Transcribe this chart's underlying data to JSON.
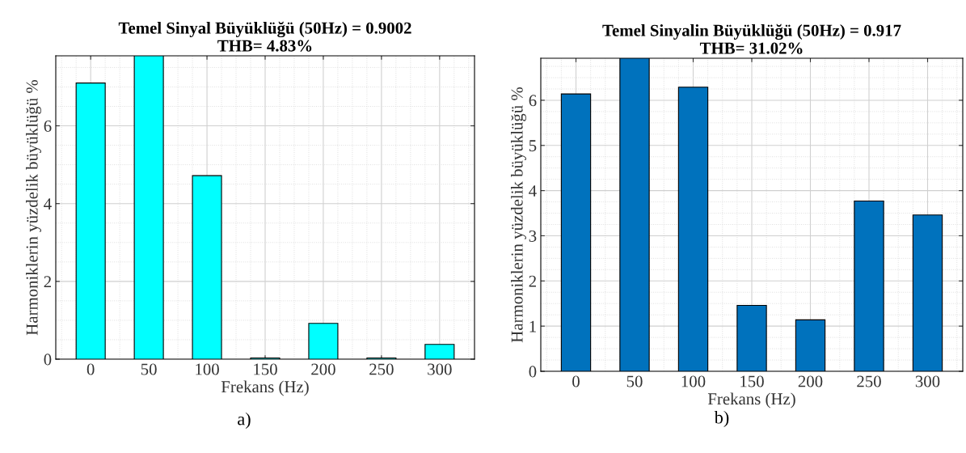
{
  "chart_data": [
    {
      "type": "bar",
      "title": "Temel Sinyal Büyüklüğü (50Hz) = 0.9002\nTHB= 4.83%",
      "xlabel": "Frekans (Hz)",
      "ylabel": "Harmoniklerin yüzdelik büyüklüğü %",
      "categories": [
        "0",
        "50",
        "100",
        "150",
        "200",
        "250",
        "300"
      ],
      "values": [
        7.1,
        7.8,
        4.72,
        0.03,
        0.92,
        0.03,
        0.38
      ],
      "color": "#00ffff",
      "ylim": [
        0,
        7.8
      ],
      "yticks": [
        0,
        2,
        4,
        6
      ],
      "grid": true,
      "annotations": [
        "a)"
      ]
    },
    {
      "type": "bar",
      "title": "Temel Sinyalin Büyüklüğü (50Hz) = 0.917\nTHB= 31.02%",
      "xlabel": "Frekans (Hz)",
      "ylabel": "Harmoniklerin yüzdelik büyüklüğü %",
      "categories": [
        "0",
        "50",
        "100",
        "150",
        "200",
        "250",
        "300"
      ],
      "values": [
        6.14,
        6.93,
        6.29,
        1.46,
        1.14,
        3.77,
        3.46
      ],
      "color": "#0072bd",
      "ylim": [
        0,
        6.93
      ],
      "yticks": [
        0,
        1,
        2,
        3,
        4,
        5,
        6
      ],
      "grid": true,
      "annotations": [
        "b)"
      ]
    }
  ]
}
